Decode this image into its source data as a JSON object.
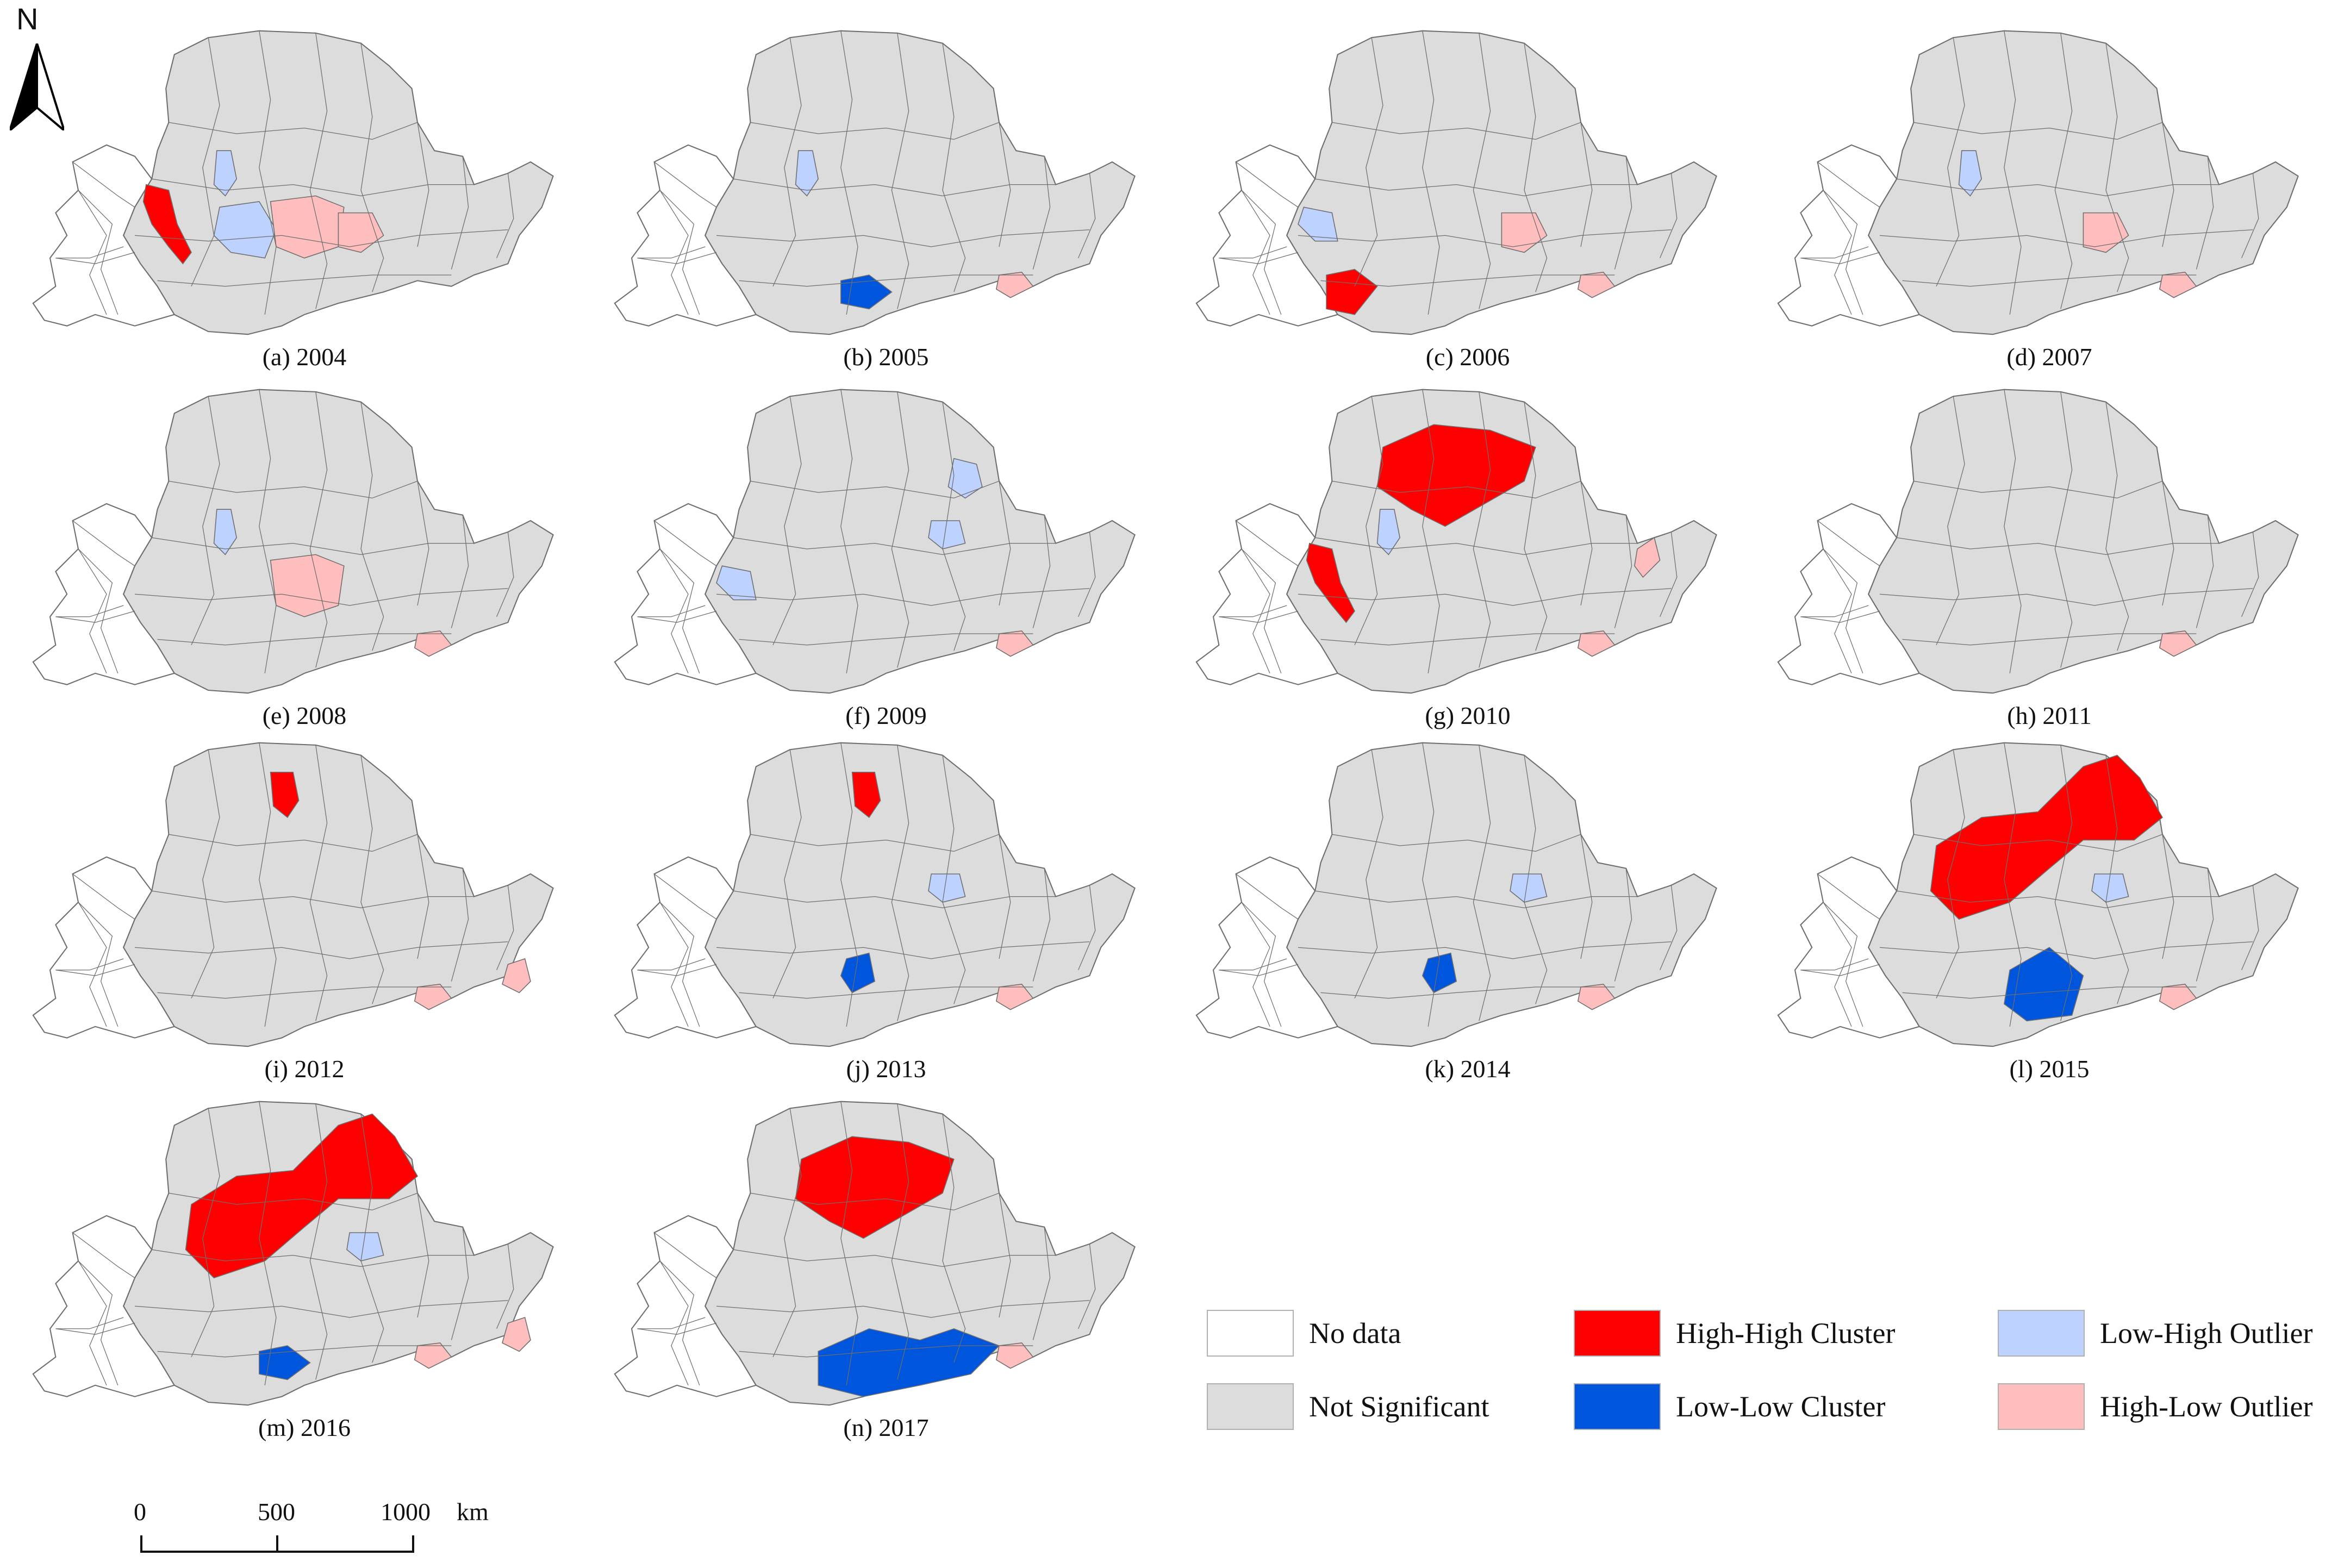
{
  "north_label": "N",
  "colors": {
    "no_data": "#ffffff",
    "not_significant": "#dcdcdc",
    "high_high": "#ff0000",
    "low_low": "#0055dd",
    "low_high": "#bed2ff",
    "high_low": "#ffbebe",
    "border": "#6e6e6e"
  },
  "panels": [
    {
      "caption": "(a) 2004",
      "regions": [
        "hh:corridor",
        "lh:north_strip",
        "lh:center_west",
        "hl:center",
        "hl:center_east"
      ]
    },
    {
      "caption": "(b) 2005",
      "regions": [
        "lh:north_strip",
        "ll:south",
        "hl:southeast"
      ]
    },
    {
      "caption": "(c) 2006",
      "regions": [
        "lh:west",
        "hl:center_east",
        "hl:southeast",
        "hh:southwest"
      ]
    },
    {
      "caption": "(d) 2007",
      "regions": [
        "lh:north_strip",
        "hl:center_east",
        "hl:southeast"
      ]
    },
    {
      "caption": "(e) 2008",
      "regions": [
        "lh:north_strip",
        "hl:center",
        "hl:southeast"
      ]
    },
    {
      "caption": "(f) 2009",
      "regions": [
        "lh:west",
        "lh:northeast",
        "lh:east_small",
        "hl:southeast"
      ]
    },
    {
      "caption": "(g) 2010",
      "regions": [
        "hh:north_big",
        "lh:north_strip",
        "hh:corridor",
        "hl:east_edge",
        "hl:southeast"
      ]
    },
    {
      "caption": "(h) 2011",
      "regions": [
        "hl:southeast"
      ]
    },
    {
      "caption": "(i) 2012",
      "regions": [
        "hh:north_small",
        "hl:southeast",
        "hl:far_east"
      ]
    },
    {
      "caption": "(j) 2013",
      "regions": [
        "hh:north_small",
        "lh:east_small",
        "ll:south_small",
        "hl:southeast"
      ]
    },
    {
      "caption": "(k) 2014",
      "regions": [
        "lh:east_small",
        "ll:south_small",
        "hl:southeast"
      ]
    },
    {
      "caption": "(l) 2015",
      "regions": [
        "hh:north_diag",
        "lh:east_small",
        "ll:south_big",
        "hl:southeast"
      ]
    },
    {
      "caption": "(m) 2016",
      "regions": [
        "hh:north_diag",
        "lh:east_small",
        "ll:south",
        "hl:southeast",
        "hl:far_east"
      ]
    },
    {
      "caption": "(n) 2017",
      "regions": [
        "hh:north_big",
        "ll:south_wide",
        "hl:southeast"
      ]
    }
  ],
  "legend": [
    {
      "label": "No data",
      "color": "#ffffff"
    },
    {
      "label": "High-High Cluster",
      "color": "#ff0000"
    },
    {
      "label": "Low-High Outlier",
      "color": "#bed2ff"
    },
    {
      "label": "Not Significant",
      "color": "#dcdcdc"
    },
    {
      "label": "Low-Low Cluster",
      "color": "#0055dd"
    },
    {
      "label": "High-Low Outlier",
      "color": "#ffbebe"
    }
  ],
  "scale_bar": {
    "labels": [
      "0",
      "500",
      "1000"
    ],
    "unit": "km"
  }
}
